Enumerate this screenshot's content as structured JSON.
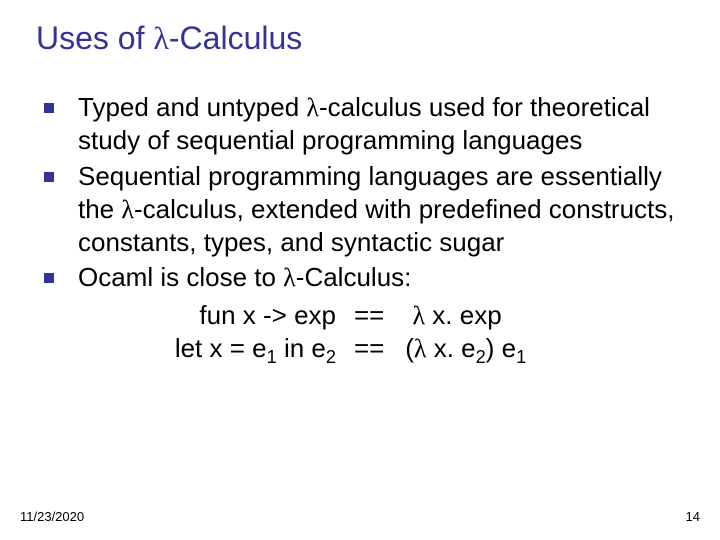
{
  "colors": {
    "title": "#333399",
    "bullet_square": "#333399",
    "text": "#000000",
    "background": "#ffffff"
  },
  "typography": {
    "title_fontsize": 32,
    "body_fontsize": 26,
    "footer_fontsize": 13
  },
  "title_parts": {
    "pre": "Uses of ",
    "lambda": "λ",
    "post": "-Calculus"
  },
  "bullets": [
    {
      "pre": "Typed and untyped ",
      "lambda": "λ",
      "post": "-calculus used for theoretical study of sequential programming languages"
    },
    {
      "pre": "Sequential programming languages are essentially the ",
      "lambda": "λ",
      "post": "-calculus, extended with predefined constructs, constants, types, and syntactic sugar"
    },
    {
      "pre": "Ocaml is close to ",
      "lambda": "λ",
      "post": "-Calculus:"
    }
  ],
  "code": {
    "row1": {
      "left": "fun x -> exp",
      "eq": "==",
      "r_pre": "",
      "r_lambda": "λ",
      "r_mid": " x. exp",
      "r_sub1": "",
      "r_tail": "",
      "r_sub2": ""
    },
    "row2": {
      "left_pre": "let x = e",
      "left_sub1": "1",
      "left_mid": " in e",
      "left_sub2": "2",
      "eq": "==",
      "r_pre": "(",
      "r_lambda": "λ",
      "r_mid": " x. e",
      "r_sub1": "2",
      "r_tail": ") e",
      "r_sub2": "1"
    }
  },
  "footer": {
    "date": "11/23/2020",
    "page": "14"
  }
}
